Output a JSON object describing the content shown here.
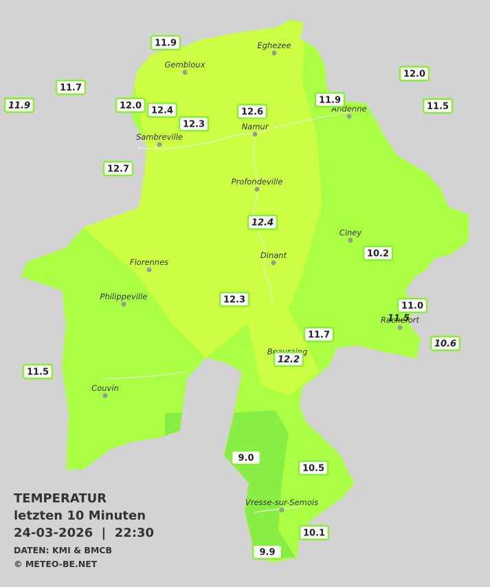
{
  "legend": {
    "title": "TEMPERATUR",
    "subtitle": "letzten 10 Minuten",
    "datetime": "24-03-2026  |  22:30",
    "source": "DATEN: KMI & BMCB",
    "copyright": "© METEO-BE.NET"
  },
  "cities": [
    "Eghezee",
    "Gembloux",
    "Andenne",
    "Namur",
    "Sambreville",
    "Profondeville",
    "Ciney",
    "Dinant",
    "Florennes",
    "Philippeville",
    "Rochefort",
    "Beauraing",
    "Couvin",
    "Vresse-sur-Semois"
  ],
  "readings": [
    "11.9",
    "11.7",
    "11.9",
    "12.0",
    "12.4",
    "12.3",
    "12.6",
    "11.9",
    "12.0",
    "11.5",
    "12.7",
    "12.4",
    "10.2",
    "12.3",
    "11.0",
    "11.5",
    "11.7",
    "10.6",
    "12.2",
    "11.5",
    "9.0",
    "10.5",
    "10.1",
    "9.9"
  ]
}
